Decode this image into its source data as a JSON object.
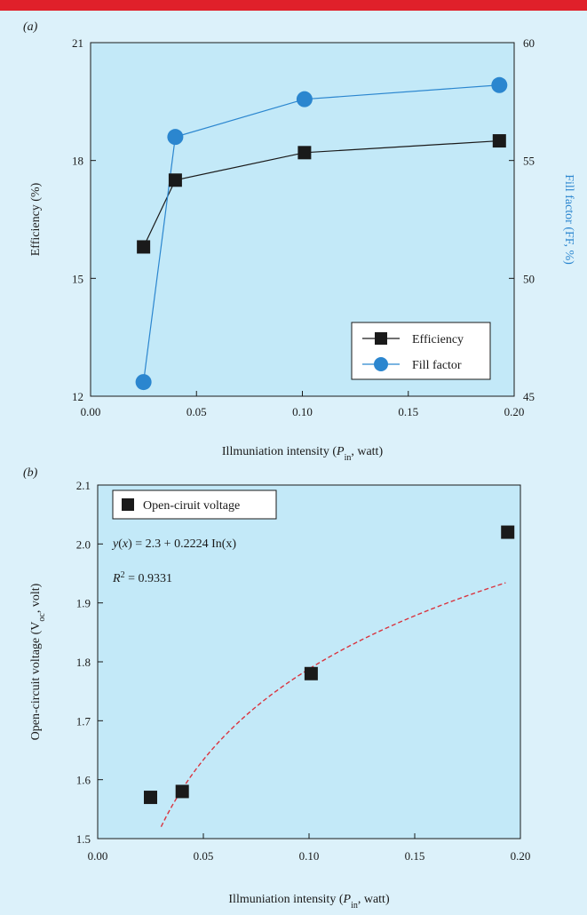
{
  "chart_data": [
    {
      "type": "line",
      "panel_label": "(a)",
      "x": [
        0.025,
        0.04,
        0.101,
        0.193
      ],
      "series": [
        {
          "name": "Efficiency",
          "axis": "left",
          "values": [
            15.8,
            17.5,
            18.2,
            18.5
          ],
          "color": "#1a1a1a",
          "marker": "square"
        },
        {
          "name": "Fill factor",
          "axis": "right",
          "values": [
            45.6,
            56.0,
            57.6,
            58.2
          ],
          "color": "#2b86cf",
          "marker": "circle"
        }
      ],
      "xlabel": {
        "pre": "Illmuniation intensity (",
        "italic": "P",
        "sub": "in",
        "post": ", watt)"
      },
      "ylabel": "Efficiency (%)",
      "ylabel_right": "Fill factor (FF, %)",
      "xlim": [
        0,
        0.2
      ],
      "ylim": [
        12,
        21
      ],
      "ylim_right": [
        45,
        60
      ],
      "xticks": [
        "0.00",
        "0.05",
        "0.10",
        "0.15",
        "0.20"
      ],
      "yticks": [
        "12",
        "15",
        "18",
        "21"
      ],
      "yticks_right": [
        "45",
        "50",
        "55",
        "60"
      ],
      "legend": {
        "position": "bottom-right",
        "entries": [
          "Efficiency",
          "Fill factor"
        ]
      },
      "grid": false
    },
    {
      "type": "scatter",
      "panel_label": "(b)",
      "x": [
        0.025,
        0.04,
        0.101,
        0.194
      ],
      "series": [
        {
          "name": "Open-ciruit voltage",
          "values": [
            1.57,
            1.58,
            1.78,
            2.02
          ],
          "color": "#1a1a1a",
          "marker": "square"
        }
      ],
      "fit": {
        "color": "#d9343f",
        "style": "dashed",
        "x_range": [
          0.03,
          0.193
        ],
        "equation": {
          "left": "y",
          "arg": "x",
          "text": " = 2.3 + 0.2224 In(x)"
        },
        "r2": {
          "text": "R",
          "sup": "2",
          "value": " = 0.9331"
        }
      },
      "xlabel": {
        "pre": "Illmuniation intensity (",
        "italic": "P",
        "sub": "in",
        "post": ", watt)"
      },
      "ylabel": {
        "pre": "Open-circuit voltage (V",
        "sub": "oc",
        "post": ", volt)"
      },
      "xlim": [
        0,
        0.2
      ],
      "ylim": [
        1.5,
        2.1
      ],
      "xticks": [
        "0.00",
        "0.05",
        "0.10",
        "0.15",
        "0.20"
      ],
      "yticks": [
        "1.5",
        "1.6",
        "1.7",
        "1.8",
        "1.9",
        "2.0",
        "2.1"
      ],
      "legend": {
        "position": "top-left",
        "entries": [
          "Open-ciruit voltage"
        ]
      },
      "grid": false
    }
  ],
  "colors": {
    "page_bg": "#dcf1fa",
    "plot_bg": "#c3e9f8",
    "accent_bar": "#e0202a"
  }
}
